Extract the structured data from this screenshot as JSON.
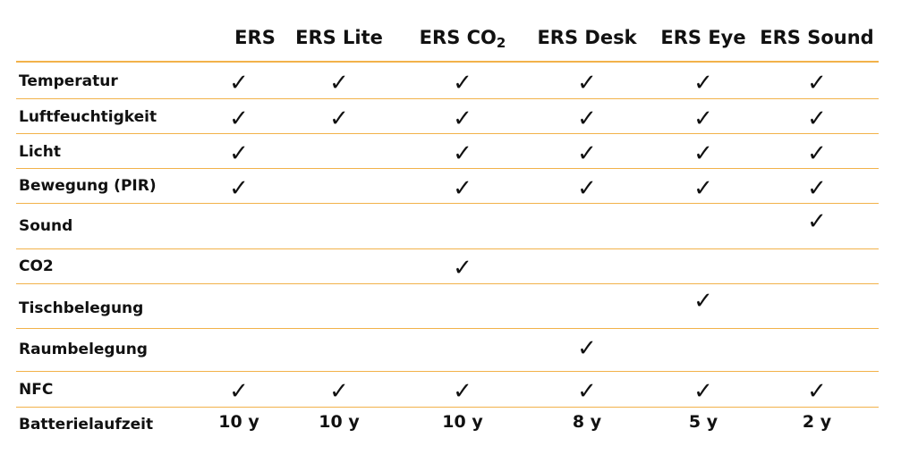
{
  "columns": [
    {
      "name": "ERS"
    },
    {
      "name": "ERS Lite"
    },
    {
      "name": "ERS CO",
      "subscript": "2"
    },
    {
      "name": "ERS Desk"
    },
    {
      "name": "ERS Eye"
    },
    {
      "name": "ERS Sound"
    }
  ],
  "check_symbol": "✓",
  "rows": [
    {
      "label": "Temperatur",
      "values": [
        true,
        true,
        true,
        true,
        true,
        true
      ]
    },
    {
      "label": "Luftfeuchtigkeit",
      "values": [
        true,
        true,
        true,
        true,
        true,
        true
      ]
    },
    {
      "label": "Licht",
      "values": [
        true,
        false,
        true,
        true,
        true,
        true
      ]
    },
    {
      "label": "Bewegung (PIR)",
      "values": [
        true,
        false,
        true,
        true,
        true,
        true
      ]
    },
    {
      "label": "Sound",
      "values": [
        false,
        false,
        false,
        false,
        false,
        true
      ]
    },
    {
      "label": "CO2",
      "values": [
        false,
        false,
        true,
        false,
        false,
        false
      ]
    },
    {
      "label": "Tischbelegung",
      "values": [
        false,
        false,
        false,
        false,
        true,
        false
      ]
    },
    {
      "label": "Raumbelegung",
      "values": [
        false,
        false,
        false,
        true,
        false,
        false
      ]
    },
    {
      "label": "NFC",
      "values": [
        true,
        true,
        true,
        true,
        true,
        true
      ]
    },
    {
      "label": "Batterielaufzeit",
      "values": [
        "10 y",
        "10 y",
        "10 y",
        "8 y",
        "5 y",
        "2 y"
      ]
    }
  ],
  "colors": {
    "rule": "#f2b24a",
    "text": "#111111"
  }
}
